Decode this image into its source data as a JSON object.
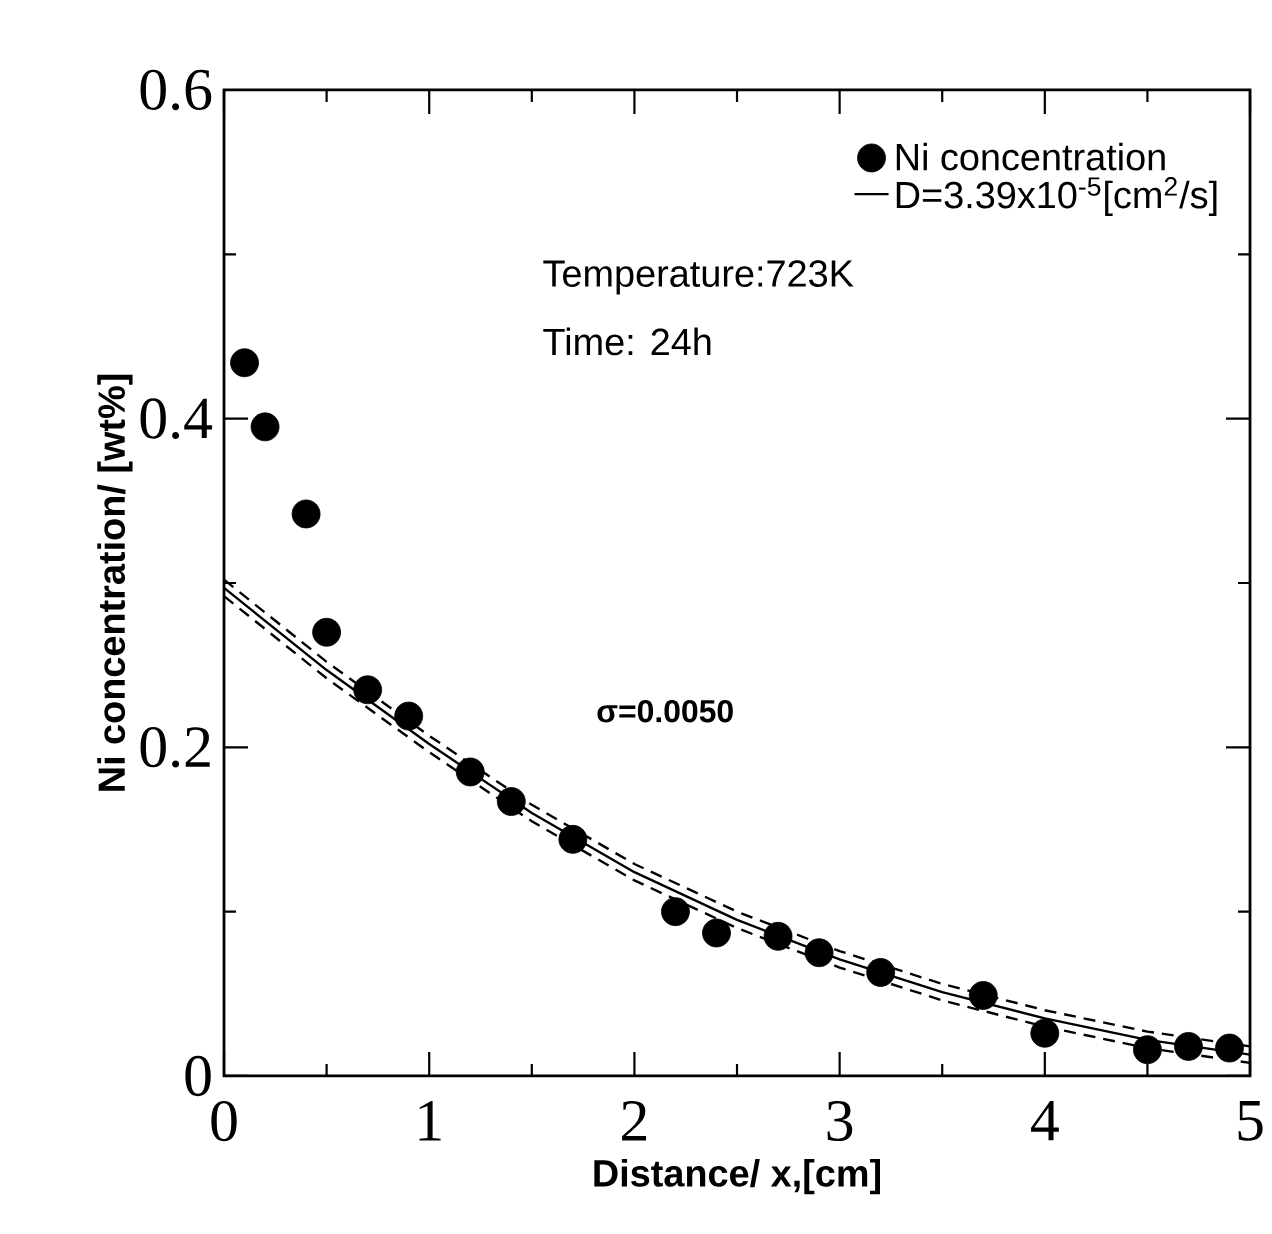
{
  "chart_data": {
    "type": "scatter",
    "xlabel": "Distance/ x,[cm]",
    "ylabel": "Ni concentration/ [wt%]",
    "xlim": [
      0,
      5
    ],
    "ylim": [
      0,
      0.6
    ],
    "xticks": [
      0,
      1,
      2,
      3,
      4,
      5
    ],
    "yticks": [
      0,
      0.2,
      0.4,
      0.6
    ],
    "legend": "top right",
    "annotations": [
      "Temperature:723K",
      "Time: 24h",
      "σ=0.0050"
    ],
    "series": [
      {
        "name": "Ni concentration",
        "color": "#000000",
        "marker": "circle",
        "x": [
          0.1,
          0.2,
          0.4,
          0.5,
          0.7,
          0.9,
          1.2,
          1.4,
          1.7,
          2.2,
          2.4,
          2.7,
          2.9,
          3.2,
          3.7,
          4.0,
          4.5,
          4.7,
          4.9
        ],
        "values": [
          0.434,
          0.395,
          0.342,
          0.27,
          0.235,
          0.219,
          0.185,
          0.167,
          0.144,
          0.1,
          0.087,
          0.085,
          0.075,
          0.063,
          0.049,
          0.026,
          0.016,
          0.018,
          0.017
        ]
      },
      {
        "type": "line",
        "name": "D=3.39x10$^{-5}$[cm$^{2}$/s]",
        "color": "#000000",
        "marker": "none",
        "line_style": "solid",
        "x": [
          0,
          0.5,
          1,
          1.5,
          2,
          2.5,
          3,
          3.5,
          4,
          4.5,
          5
        ],
        "values": [
          0.297,
          0.247,
          0.202,
          0.16,
          0.124,
          0.095,
          0.071,
          0.051,
          0.035,
          0.022,
          0.013
        ]
      },
      {
        "type": "line",
        "color": "#000000",
        "marker": "none",
        "line_style": "dashed",
        "x": [
          0,
          0.5,
          1,
          1.5,
          2,
          2.5,
          3,
          3.5,
          4,
          4.5,
          5
        ],
        "values": [
          0.302,
          0.252,
          0.207,
          0.165,
          0.129,
          0.1,
          0.076,
          0.056,
          0.04,
          0.027,
          0.018
        ]
      },
      {
        "type": "line",
        "color": "#000000",
        "marker": "none",
        "line_style": "dashed",
        "x": [
          0,
          0.5,
          1,
          1.5,
          2,
          2.5,
          3,
          3.5,
          4,
          4.5,
          5
        ],
        "values": [
          0.292,
          0.242,
          0.197,
          0.155,
          0.119,
          0.09,
          0.066,
          0.046,
          0.03,
          0.017,
          0.008
        ]
      }
    ]
  }
}
